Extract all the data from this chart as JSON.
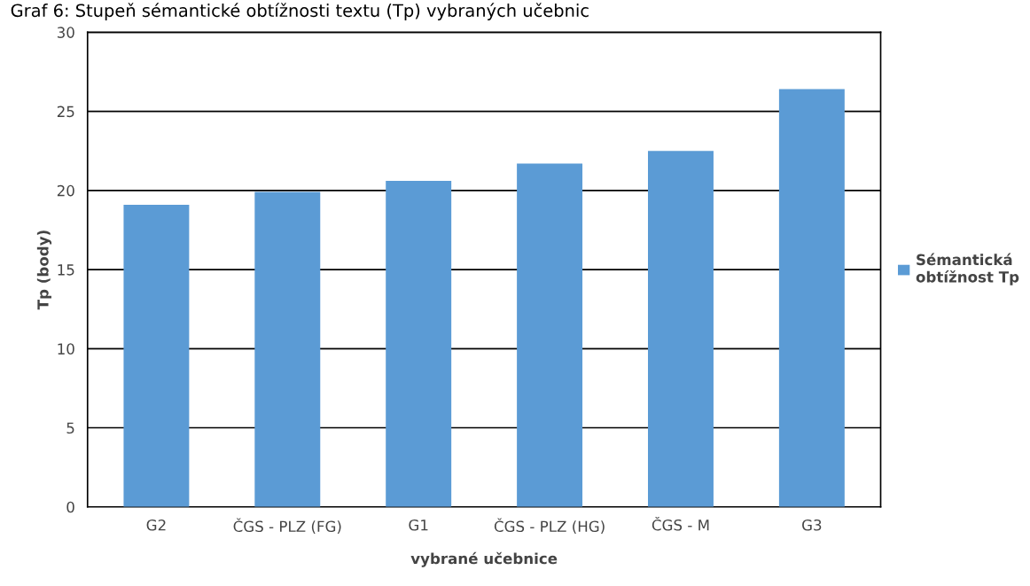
{
  "chart_data": {
    "type": "bar",
    "title": "Graf 6: Stupeň sémantické obtížnosti textu (Tp) vybraných učebnic",
    "xlabel": "vybrané učebnice",
    "ylabel": "Tp (body)",
    "categories": [
      "G2",
      "ČGS - PLZ (FG)",
      "G1",
      "ČGS - PLZ (HG)",
      "ČGS - M",
      "G3"
    ],
    "series": [
      {
        "name": "Sémantická\nobtížnost Tp",
        "color": "#5b9bd5",
        "values": [
          19.1,
          19.9,
          20.6,
          21.7,
          22.5,
          26.4
        ]
      }
    ],
    "ylim": [
      0,
      30
    ],
    "yticks": [
      0,
      5,
      10,
      15,
      20,
      25,
      30
    ],
    "grid": "y",
    "legend": "right"
  }
}
